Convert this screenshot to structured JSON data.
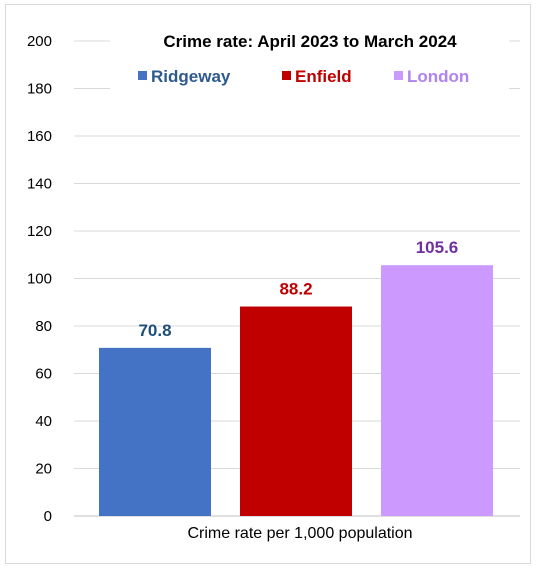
{
  "chart_data": {
    "type": "bar",
    "title": "Crime rate: April 2023 to March 2024",
    "xlabel": "Crime rate per 1,000 population",
    "ylabel": "",
    "ylim": [
      0,
      200
    ],
    "yticks": [
      0,
      20,
      40,
      60,
      80,
      100,
      120,
      140,
      160,
      180,
      200
    ],
    "grid": true,
    "legend_position": "top",
    "categories": [
      "Crime rate per 1,000 population"
    ],
    "series": [
      {
        "name": "Ridgeway",
        "values": [
          70.8
        ],
        "label": "70.8",
        "color": "#4472c4",
        "label_color": "#1f4e79",
        "legend_color": "#2e5a8f"
      },
      {
        "name": "Enfield",
        "values": [
          88.2
        ],
        "label": "88.2",
        "color": "#c00000",
        "label_color": "#c00000",
        "legend_color": "#c00000"
      },
      {
        "name": "London",
        "values": [
          105.6
        ],
        "label": "105.6",
        "color": "#cc99ff",
        "label_color": "#7030a0",
        "legend_color": "#b083f0"
      }
    ]
  }
}
